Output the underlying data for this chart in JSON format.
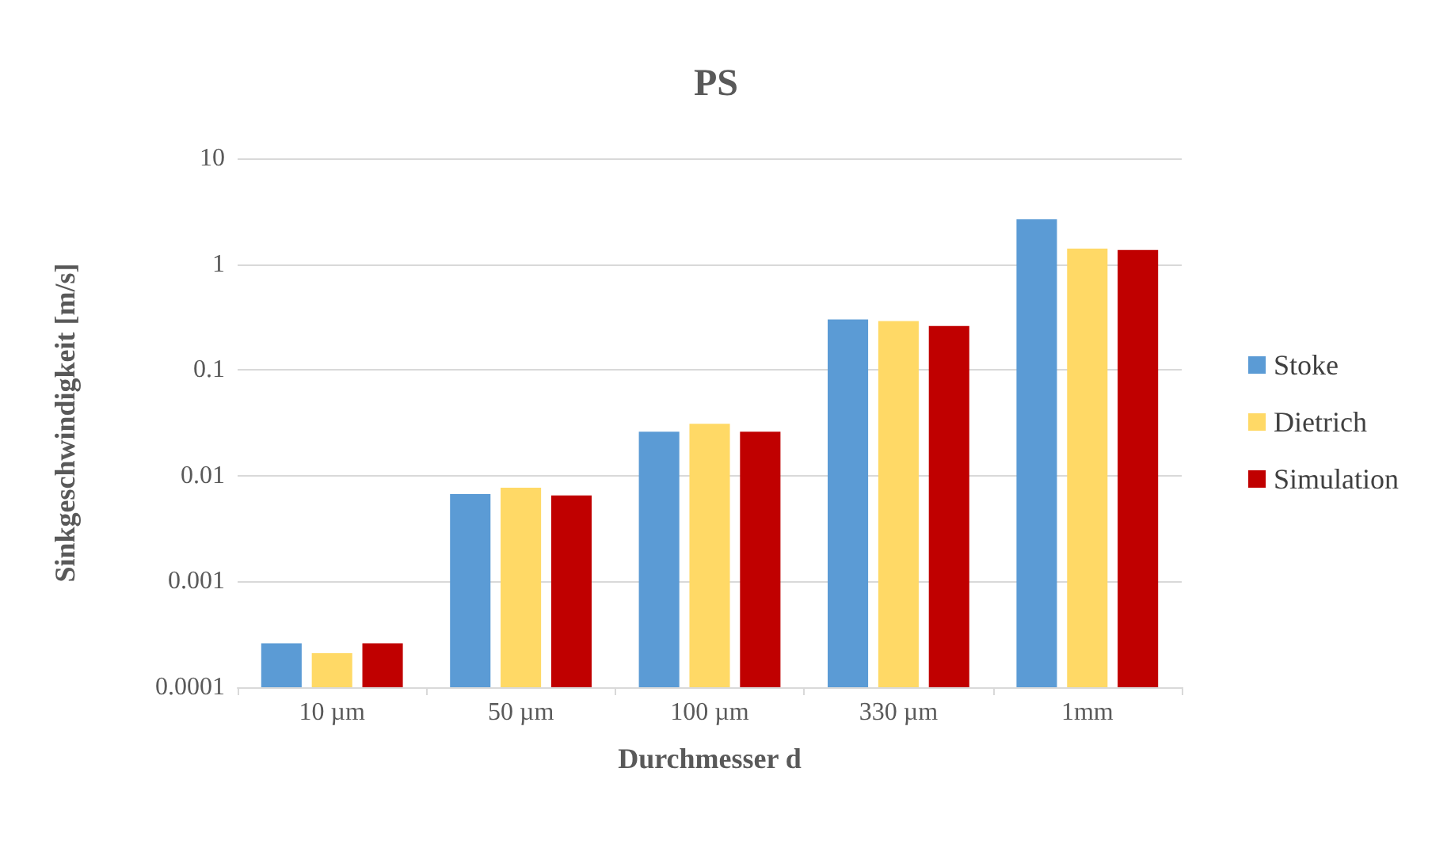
{
  "chart_data": {
    "type": "bar",
    "title": "PS",
    "xlabel": "Durchmesser d",
    "ylabel": "Sinkgeschwindigkeit [m/s]",
    "categories": [
      "10 µm",
      "50 µm",
      "100 µm",
      "330 µm",
      "1mm"
    ],
    "series": [
      {
        "name": "Stoke",
        "color": "#5b9bd5",
        "values": [
          0.00026,
          0.0067,
          0.026,
          0.3,
          2.65
        ]
      },
      {
        "name": "Dietrich",
        "color": "#ffd966",
        "values": [
          0.00021,
          0.0077,
          0.031,
          0.29,
          1.4
        ]
      },
      {
        "name": "Simulation",
        "color": "#c00000",
        "values": [
          0.00026,
          0.0065,
          0.026,
          0.26,
          1.36
        ]
      }
    ],
    "log": "y",
    "ylim": [
      0.0001,
      10
    ],
    "yticks": [
      0.0001,
      0.001,
      0.01,
      0.1,
      1,
      10
    ],
    "grid": "y",
    "legend": "right"
  }
}
